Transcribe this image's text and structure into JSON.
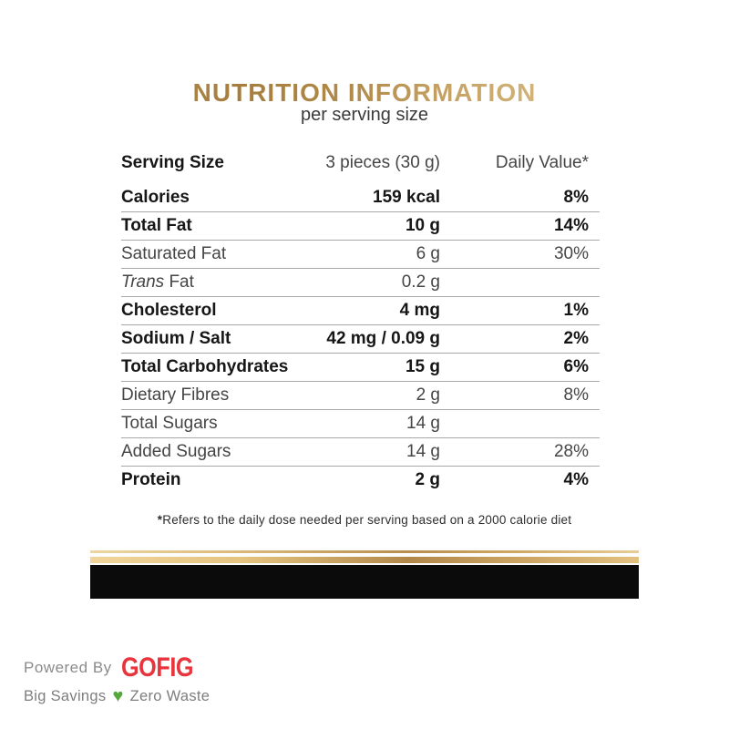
{
  "header": {
    "title": "NUTRITION INFORMATION",
    "subtitle": "per serving size"
  },
  "table": {
    "rows": [
      {
        "label": "Serving Size",
        "value": "3 pieces (30 g)",
        "dv": "Daily Value*",
        "bold": false,
        "header": true,
        "divider": false
      },
      {
        "label": "Calories",
        "value": "159 kcal",
        "dv": "8%",
        "bold": true,
        "divider": true
      },
      {
        "label": "Total Fat",
        "value": "10 g",
        "dv": "14%",
        "bold": true,
        "divider": true
      },
      {
        "label": "Saturated Fat",
        "value": "6 g",
        "dv": "30%",
        "bold": false,
        "divider": true
      },
      {
        "label_italic": "Trans",
        "label": " Fat",
        "value": "0.2 g",
        "dv": "",
        "bold": false,
        "divider": true
      },
      {
        "label": "Cholesterol",
        "value": "4 mg",
        "dv": "1%",
        "bold": true,
        "divider": true
      },
      {
        "label": "Sodium / Salt",
        "value": "42 mg / 0.09 g",
        "dv": "2%",
        "bold": true,
        "divider": true
      },
      {
        "label": "Total Carbohydrates",
        "value": "15 g",
        "dv": "6%",
        "bold": true,
        "divider": true
      },
      {
        "label": "Dietary Fibres",
        "value": "2 g",
        "dv": "8%",
        "bold": false,
        "divider": true
      },
      {
        "label": "Total Sugars",
        "value": "14 g",
        "dv": "",
        "bold": false,
        "divider": true
      },
      {
        "label": "Added Sugars",
        "value": "14 g",
        "dv": "28%",
        "bold": false,
        "divider": true
      },
      {
        "label": "Protein",
        "value": "2 g",
        "dv": "4%",
        "bold": true,
        "divider": false
      }
    ]
  },
  "footnote": {
    "star": "*",
    "text": "Refers to the daily dose needed per serving based on a 2000 calorie diet"
  },
  "branding": {
    "powered_by": "Powered By",
    "brand": "GOFIG",
    "tagline_left": "Big Savings",
    "tagline_right": "Zero Waste",
    "heart_glyph": "♥",
    "brand_color": "#e8343c",
    "heart_color": "#55a93c"
  },
  "colors": {
    "title_gold_dark": "#a57e3f",
    "title_gold_light": "#dcc189",
    "divider_gray": "#a8a8a8",
    "black_bar": "#0b0b0b",
    "gold_bar_light": "#f0d59b",
    "gold_bar_dark": "#b2884a"
  }
}
